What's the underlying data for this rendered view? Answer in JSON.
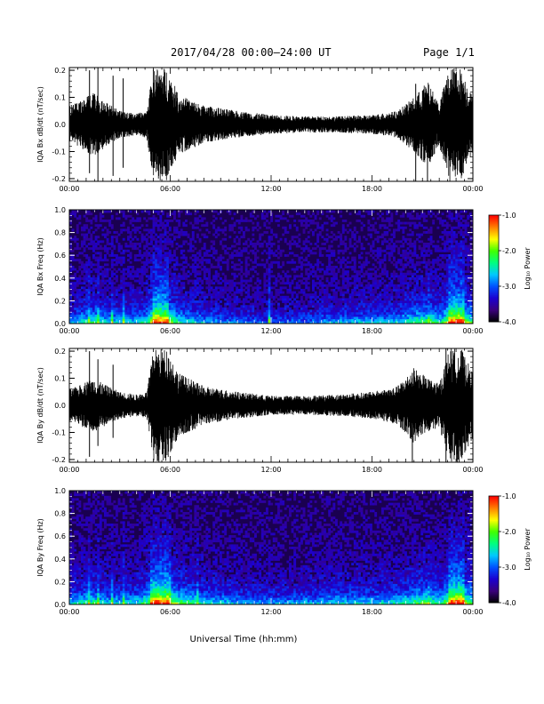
{
  "header": {
    "title": "2017/04/28  00:00–24:00 UT",
    "page": "Page 1/1"
  },
  "footer": {
    "xlabel": "Universal Time (hh:mm)"
  },
  "colorbar": {
    "label": "Log₁₀ Power",
    "ticks": [
      "-1.0",
      "-2.0",
      "-3.0",
      "-4.0"
    ],
    "range": [
      -4.0,
      -1.0
    ],
    "colors": [
      "#000000",
      "#3a007a",
      "#1c00d0",
      "#0050ff",
      "#00c8ff",
      "#00ff80",
      "#40ff00",
      "#ffff00",
      "#ff8000",
      "#ff0000"
    ]
  },
  "chart_data": [
    {
      "type": "line",
      "ylabel": "IQA Bx dB/dt (nT/sec)",
      "xlim": [
        0,
        24
      ],
      "ylim": [
        -0.21,
        0.21
      ],
      "yticks": [
        "0.2",
        "0.1",
        "0.0",
        "-0.1",
        "-0.2"
      ],
      "xticks": [
        "00:00",
        "06:00",
        "12:00",
        "18:00",
        "00:00"
      ],
      "envelope": {
        "hours": [
          0,
          0.5,
          1,
          1.5,
          2,
          3,
          4,
          4.6,
          5,
          5.8,
          6.5,
          8,
          10,
          12,
          14,
          16,
          18,
          19.5,
          20.5,
          21.3,
          22,
          22.6,
          23.3,
          24
        ],
        "amplitude": [
          0.07,
          0.08,
          0.1,
          0.12,
          0.09,
          0.05,
          0.04,
          0.05,
          0.21,
          0.21,
          0.11,
          0.07,
          0.05,
          0.035,
          0.03,
          0.03,
          0.035,
          0.05,
          0.1,
          0.16,
          0.08,
          0.21,
          0.21,
          0.1
        ]
      },
      "spikes": [
        {
          "hour": 1.2,
          "min": -0.18,
          "max": 0.2
        },
        {
          "hour": 1.7,
          "min": -0.21,
          "max": 0.21
        },
        {
          "hour": 2.6,
          "min": -0.19,
          "max": 0.18
        },
        {
          "hour": 3.2,
          "min": -0.16,
          "max": 0.17
        },
        {
          "hour": 20.6,
          "min": -0.21,
          "max": 0.15
        },
        {
          "hour": 21.3,
          "min": -0.21,
          "max": 0.1
        }
      ]
    },
    {
      "type": "heatmap",
      "ylabel": "IQA Bx Freq (Hz)",
      "xlim": [
        0,
        24
      ],
      "ylim": [
        0,
        1.0
      ],
      "yticks": [
        "1.0",
        "0.8",
        "0.6",
        "0.4",
        "0.2",
        "0.0"
      ],
      "xticks": [
        "00:00",
        "06:00",
        "12:00",
        "18:00",
        "00:00"
      ],
      "activity": {
        "hours": [
          0,
          0.5,
          1,
          1.5,
          2,
          3,
          4,
          4.6,
          5,
          5.8,
          6.5,
          8,
          10,
          12,
          14,
          16,
          18,
          19.5,
          20.5,
          21.3,
          22,
          22.6,
          23.3,
          24
        ],
        "intensity": [
          0.45,
          0.5,
          0.6,
          0.65,
          0.55,
          0.45,
          0.5,
          0.6,
          1.0,
          0.95,
          0.6,
          0.45,
          0.35,
          0.3,
          0.35,
          0.45,
          0.45,
          0.5,
          0.65,
          0.75,
          0.55,
          1.0,
          1.0,
          0.6
        ]
      },
      "lines": [
        1.2,
        1.7,
        2.6,
        3.2,
        11.9,
        21.3,
        22.8,
        23.1
      ]
    },
    {
      "type": "line",
      "ylabel": "IQA By dB/dt (nT/sec)",
      "xlim": [
        0,
        24
      ],
      "ylim": [
        -0.21,
        0.21
      ],
      "yticks": [
        "0.2",
        "0.1",
        "0.0",
        "-0.1",
        "-0.2"
      ],
      "xticks": [
        "00:00",
        "06:00",
        "12:00",
        "18:00",
        "00:00"
      ],
      "envelope": {
        "hours": [
          0,
          0.5,
          1,
          1.5,
          2,
          3,
          4,
          4.6,
          5,
          5.8,
          6.5,
          8,
          10,
          12,
          14,
          16,
          18,
          19.5,
          20.5,
          21.3,
          22,
          22.6,
          23.3,
          24
        ],
        "amplitude": [
          0.06,
          0.07,
          0.09,
          0.1,
          0.08,
          0.05,
          0.04,
          0.05,
          0.21,
          0.21,
          0.12,
          0.07,
          0.05,
          0.035,
          0.035,
          0.04,
          0.05,
          0.07,
          0.14,
          0.1,
          0.08,
          0.21,
          0.21,
          0.12
        ]
      },
      "spikes": [
        {
          "hour": 1.2,
          "min": -0.19,
          "max": 0.2
        },
        {
          "hour": 1.7,
          "min": -0.15,
          "max": 0.17
        },
        {
          "hour": 2.6,
          "min": -0.12,
          "max": 0.15
        },
        {
          "hour": 20.4,
          "min": -0.21,
          "max": 0.12
        },
        {
          "hour": 22.4,
          "min": -0.21,
          "max": 0.21
        }
      ]
    },
    {
      "type": "heatmap",
      "ylabel": "IQA By Freq (Hz)",
      "xlim": [
        0,
        24
      ],
      "ylim": [
        0,
        1.0
      ],
      "yticks": [
        "1.0",
        "0.8",
        "0.6",
        "0.4",
        "0.2",
        "0.0"
      ],
      "xticks": [
        "00:00",
        "06:00",
        "12:00",
        "18:00",
        "00:00"
      ],
      "activity": {
        "hours": [
          0,
          0.5,
          1,
          1.5,
          2,
          3,
          4,
          4.6,
          5,
          5.8,
          6.5,
          8,
          10,
          12,
          14,
          16,
          18,
          19.5,
          20.5,
          21.3,
          22,
          22.6,
          23.3,
          24
        ],
        "intensity": [
          0.5,
          0.55,
          0.6,
          0.65,
          0.55,
          0.5,
          0.55,
          0.7,
          1.0,
          1.0,
          0.75,
          0.55,
          0.45,
          0.4,
          0.45,
          0.5,
          0.5,
          0.55,
          0.7,
          0.75,
          0.6,
          1.0,
          1.0,
          0.65
        ]
      },
      "lines": [
        1.2,
        1.7,
        2.6,
        3.2,
        7.6,
        21.3,
        22.8,
        23.1
      ]
    }
  ]
}
